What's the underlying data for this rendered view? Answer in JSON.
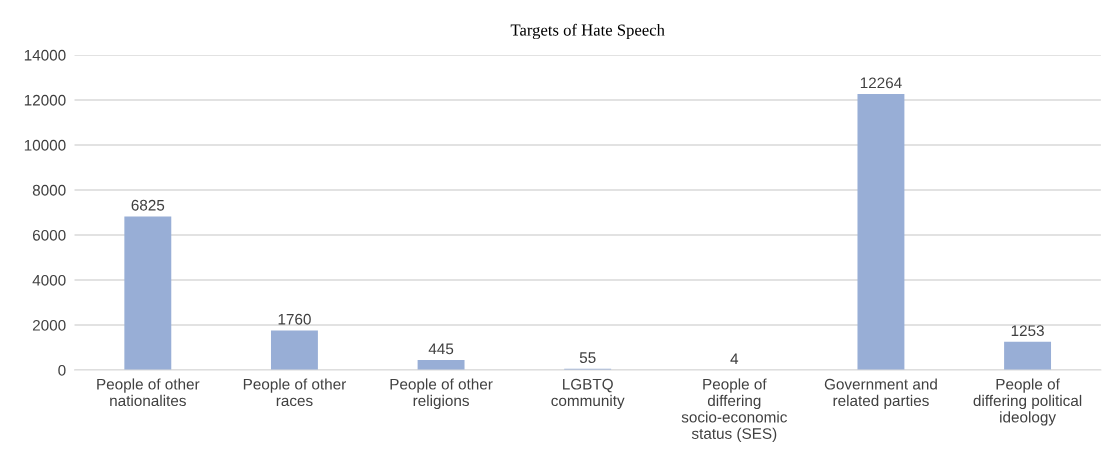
{
  "chart_data": {
    "type": "bar",
    "title": "Targets of Hate Speech",
    "categories": [
      "People of other\nnationalites",
      "People of other\nraces",
      "People of other\nreligions",
      "LGBTQ\ncommunity",
      "People of\ndiffering\nsocio-economic\nstatus (SES)",
      "Government and\nrelated parties",
      "People of\ndiffering political\nideology"
    ],
    "values": [
      6825,
      1760,
      445,
      55,
      4,
      12264,
      1253
    ],
    "color": "#98aed6",
    "ylim": [
      0,
      14000
    ],
    "yticks": [
      0,
      2000,
      4000,
      6000,
      8000,
      10000,
      12000,
      14000
    ],
    "grid": "y",
    "data_labels": true,
    "legend": false
  }
}
